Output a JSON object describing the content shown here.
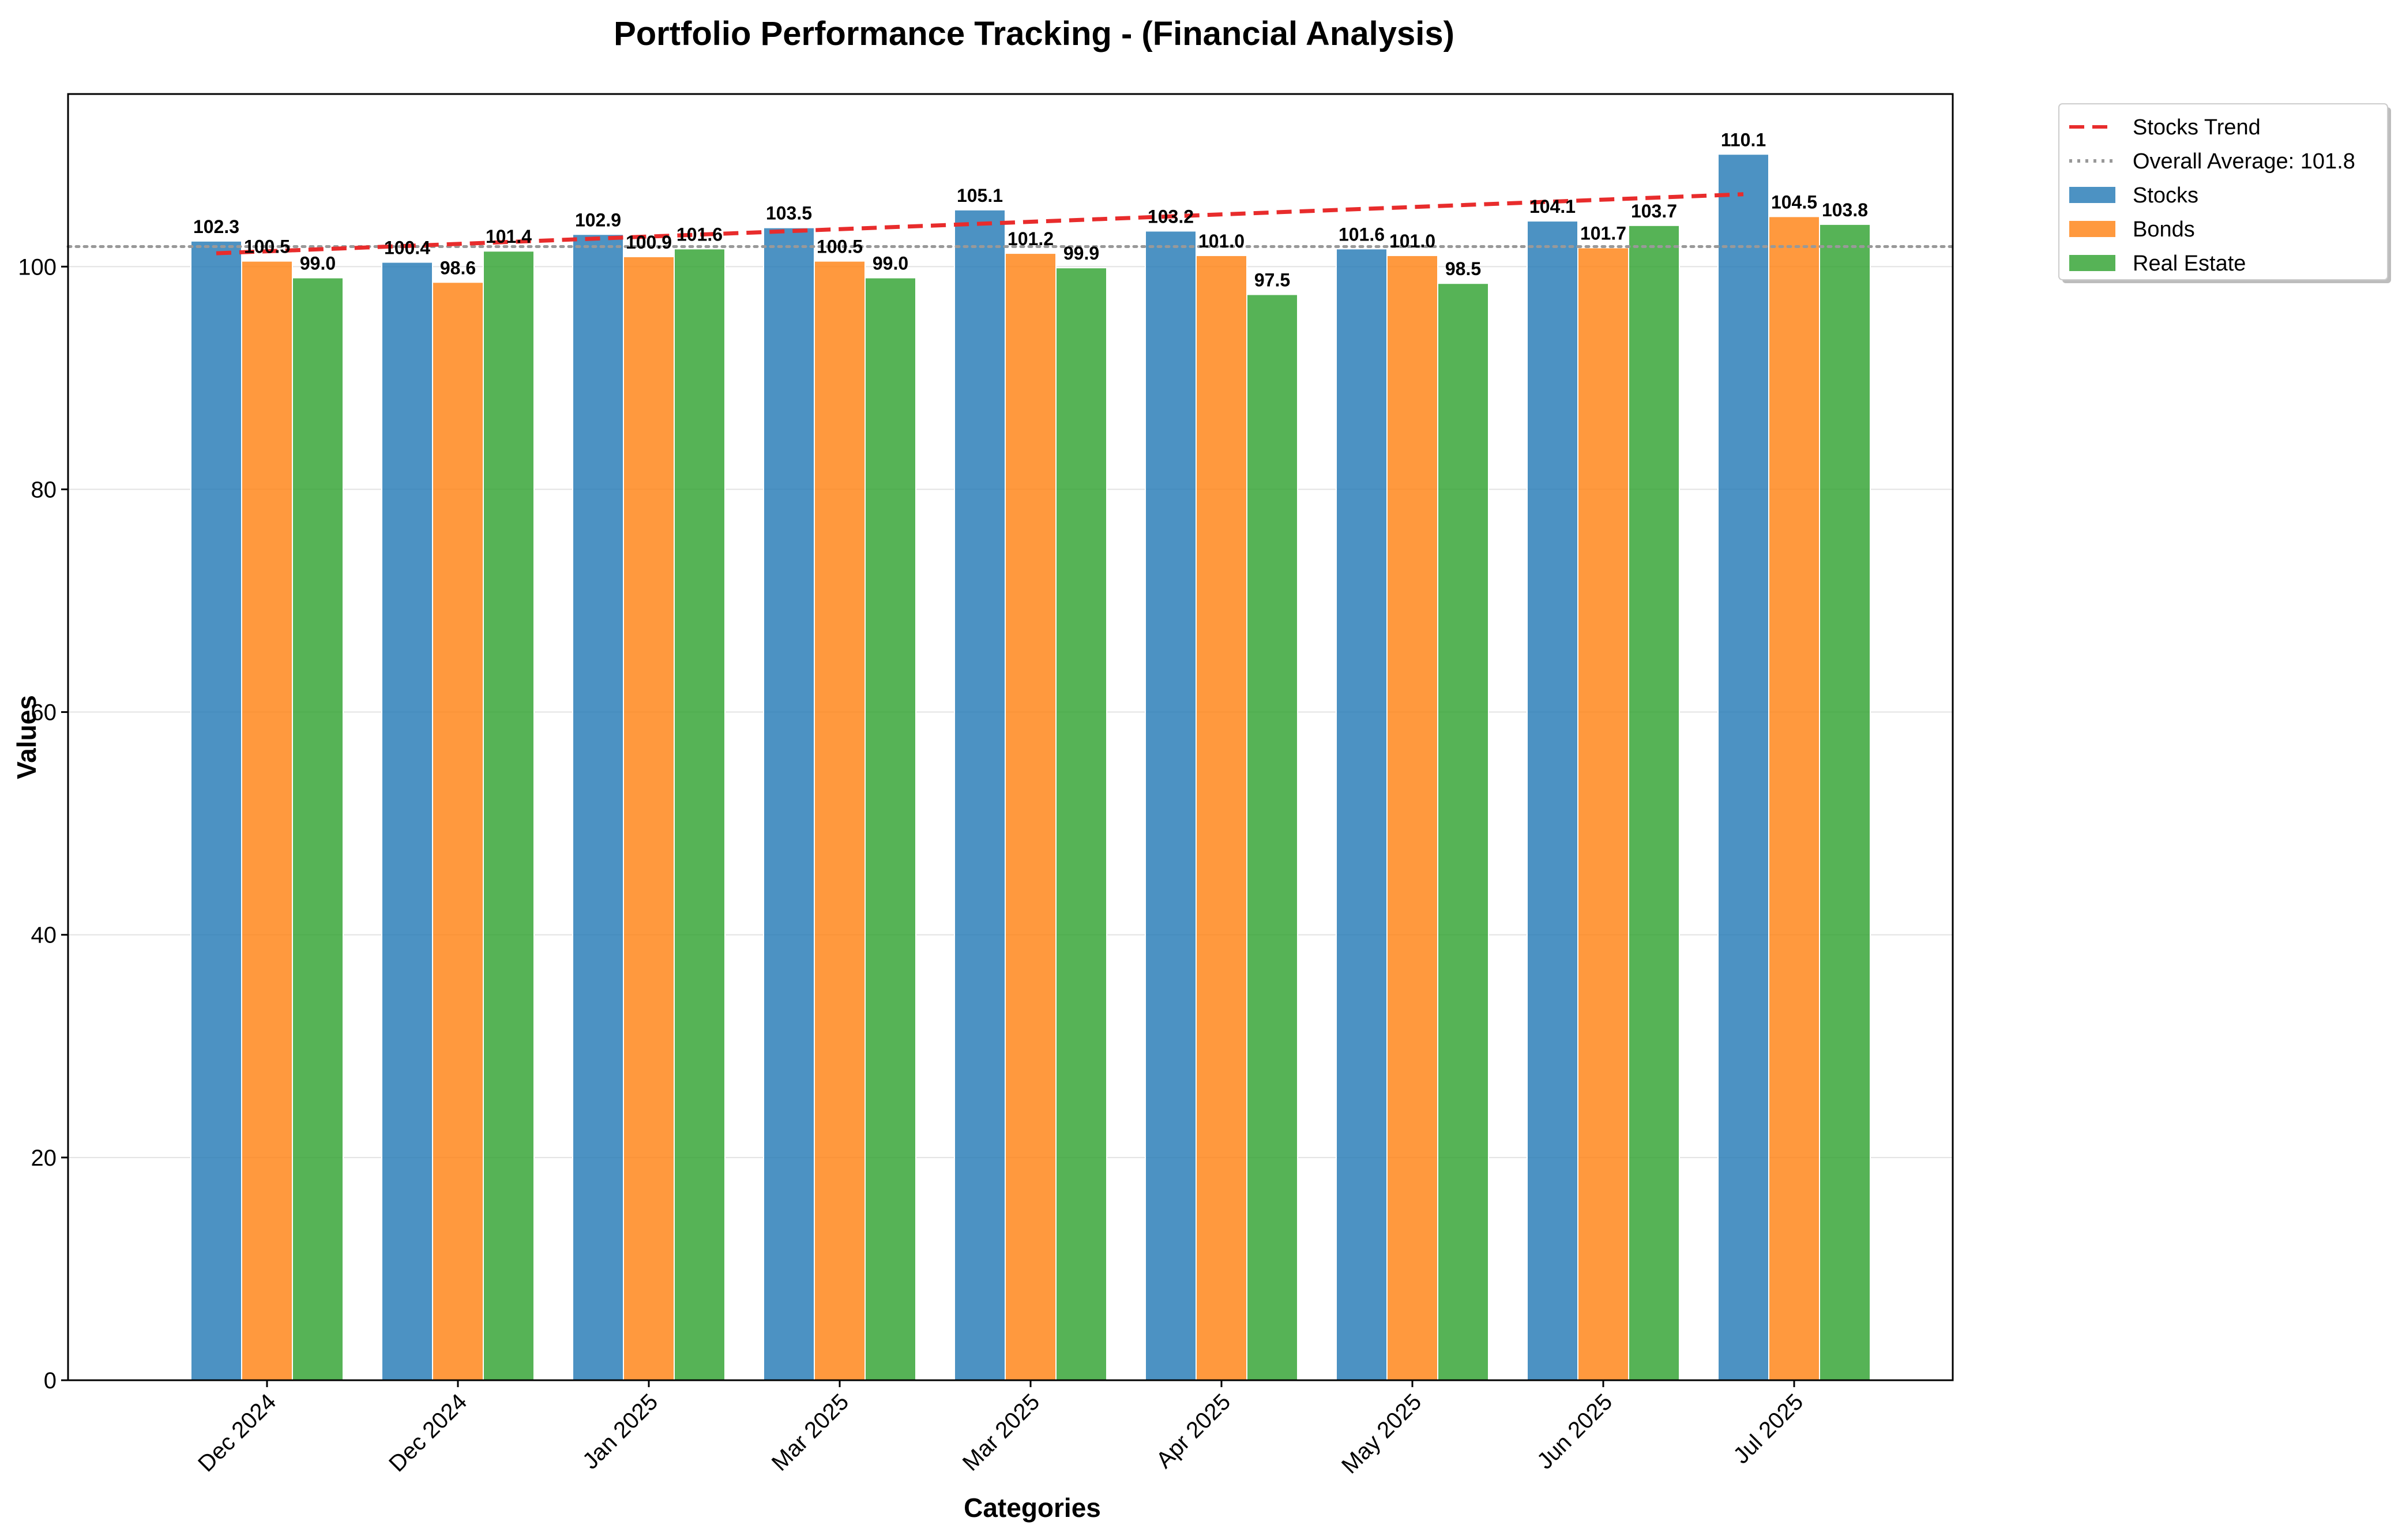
{
  "chart_data": {
    "type": "bar",
    "title": "Portfolio Performance Tracking - (Financial Analysis)",
    "xlabel": "Categories",
    "ylabel": "Values",
    "categories": [
      "Dec 2024",
      "Dec 2024",
      "Jan 2025",
      "Mar 2025",
      "Mar 2025",
      "Apr 2025",
      "May 2025",
      "Jun 2025",
      "Jul 2025"
    ],
    "series": [
      {
        "name": "Stocks",
        "color": "#1f77b4",
        "values": [
          102.3,
          100.4,
          102.9,
          103.5,
          105.1,
          103.2,
          101.6,
          104.1,
          110.1
        ]
      },
      {
        "name": "Bonds",
        "color": "#ff7f0e",
        "values": [
          100.5,
          98.6,
          100.9,
          100.5,
          101.2,
          101.0,
          101.0,
          101.7,
          104.5
        ]
      },
      {
        "name": "Real Estate",
        "color": "#2ca02c",
        "values": [
          99.0,
          101.4,
          101.6,
          99.0,
          99.9,
          97.5,
          98.5,
          103.7,
          103.8
        ]
      }
    ],
    "trend": {
      "name": "Stocks Trend",
      "color": "#e82c2c",
      "style": "dashed",
      "start": 101.2,
      "end": 106.5
    },
    "average": {
      "name": "Overall Average: 101.8",
      "value": 101.8,
      "color": "#999999",
      "style": "dotted"
    },
    "ylim": [
      0,
      115.5
    ],
    "yticks": [
      0,
      20,
      40,
      60,
      80,
      100
    ],
    "grid": true,
    "legend_position": "top-right",
    "legend_order": [
      "Stocks Trend",
      "Overall Average: 101.8",
      "Stocks",
      "Bonds",
      "Real Estate"
    ]
  }
}
